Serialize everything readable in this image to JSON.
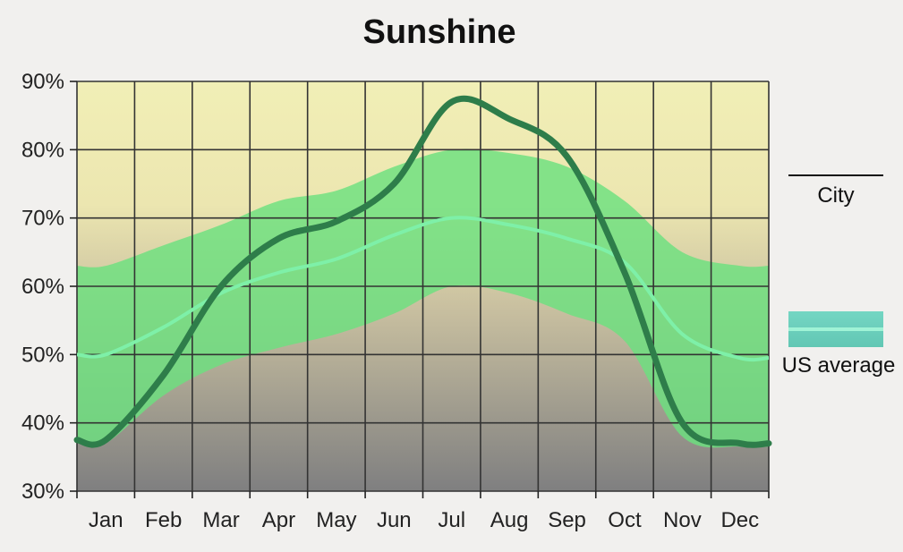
{
  "chart_data": {
    "type": "line",
    "title": "Sunshine",
    "xlabel": "",
    "ylabel": "",
    "categories": [
      "Jan",
      "Feb",
      "Mar",
      "Apr",
      "May",
      "Jun",
      "Jul",
      "Aug",
      "Sep",
      "Oct",
      "Nov",
      "Dec"
    ],
    "ylim": [
      30,
      90
    ],
    "yticks": [
      30,
      40,
      50,
      60,
      70,
      80,
      90
    ],
    "ytick_suffix": "%",
    "grid": true,
    "legend_position": "right",
    "series": [
      {
        "name": "City",
        "style": "line",
        "color": "#2e7d4a",
        "values": [
          37.5,
          47,
          60,
          67,
          69.5,
          75,
          87,
          84.5,
          79,
          62,
          40,
          37
        ]
      },
      {
        "name": "US average",
        "style": "band",
        "color": "#7ef0a8",
        "band_color": "#6be07f",
        "values": [
          50,
          54,
          59,
          62,
          64,
          67.5,
          70,
          69,
          67,
          63.5,
          53,
          49.5
        ],
        "upper": [
          63,
          66,
          69,
          72.5,
          74,
          77.5,
          80,
          79.5,
          77.5,
          72.5,
          65,
          63
        ],
        "lower": [
          37,
          44,
          48.5,
          51,
          53,
          56,
          60,
          59,
          56,
          52,
          38,
          36.5
        ]
      }
    ],
    "colors": {
      "background_top": "#f1efb6",
      "background_bottom": "#7f7f80",
      "grid": "#333333"
    }
  }
}
